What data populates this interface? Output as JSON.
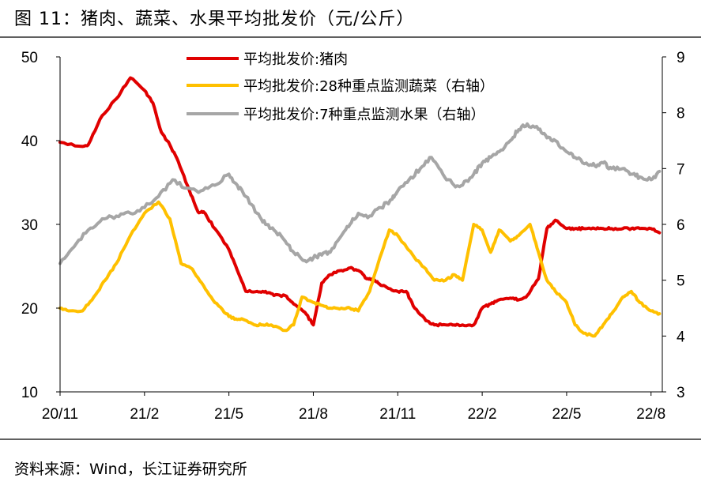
{
  "figure": {
    "title": "图  11：猪肉、蔬菜、水果平均批发价（元/公斤）",
    "source": "资料来源：Wind，长江证券研究所"
  },
  "colors": {
    "pork": "#e00000",
    "vegetables": "#ffc000",
    "fruits": "#a6a6a6",
    "axis": "#000000"
  },
  "chart_data": {
    "type": "line",
    "title": "猪肉、蔬菜、水果平均批发价（元/公斤）",
    "x_ticks": [
      "20/11",
      "21/2",
      "21/5",
      "21/8",
      "21/11",
      "22/2",
      "22/5",
      "22/8"
    ],
    "x_range": [
      0,
      21.4
    ],
    "y_left": {
      "ticks": [
        "50",
        "40",
        "30",
        "20",
        "10"
      ],
      "range": [
        10,
        50
      ]
    },
    "y_right": {
      "ticks": [
        "9",
        "8",
        "7",
        "6",
        "5",
        "4",
        "3"
      ],
      "range": [
        3,
        9
      ]
    },
    "legend_position": "top",
    "series": [
      {
        "name": "平均批发价:猪肉",
        "axis": "left",
        "color": "#e00000",
        "x": [
          0,
          0.8,
          1.0,
          1.5,
          2.0,
          2.5,
          3.0,
          3.3,
          3.6,
          3.9,
          4.2,
          4.6,
          4.9,
          5.1,
          5.5,
          6.0,
          6.3,
          6.6,
          7.0,
          7.3,
          7.6,
          8.0,
          8.3,
          8.7,
          9.0,
          9.3,
          9.6,
          10.0,
          10.3,
          10.6,
          10.9,
          11.1,
          11.3,
          11.6,
          12.0,
          12.3,
          12.6,
          13.0,
          13.3,
          13.7,
          14.0,
          14.3,
          14.7,
          15.0,
          15.3,
          15.6,
          16.0,
          16.3,
          16.6,
          17.0,
          17.3,
          17.6,
          18.0,
          18.3,
          18.6,
          19.0,
          19.3,
          19.6,
          20.0,
          20.3,
          20.6,
          21.0,
          21.3
        ],
        "y": [
          39.8,
          39.3,
          39.5,
          43,
          45,
          47.5,
          46,
          44.5,
          41,
          39.5,
          37.5,
          34,
          31.5,
          31.5,
          29.5,
          27,
          24.5,
          22,
          22,
          22,
          21.5,
          21.5,
          20.5,
          19.5,
          18,
          23,
          24,
          24.5,
          24.8,
          24.5,
          23.5,
          23.5,
          23,
          22.5,
          22,
          22,
          20,
          18.5,
          18,
          18,
          18,
          18,
          18,
          20,
          20.5,
          21,
          21.2,
          21,
          21.5,
          23.5,
          29.5,
          30.5,
          29.5,
          29.5,
          29.5,
          29.5,
          29.5,
          29.5,
          29.5,
          29.5,
          29.5,
          29.5,
          29
        ]
      },
      {
        "name": "平均批发价:28种重点监测蔬菜（右轴）",
        "axis": "right",
        "color": "#ffc000",
        "x": [
          0,
          0.3,
          0.8,
          1.2,
          1.6,
          2.0,
          2.5,
          3.0,
          3.5,
          3.9,
          4.3,
          4.7,
          5.1,
          5.5,
          5.9,
          6.2,
          6.5,
          6.9,
          7.2,
          7.5,
          8.0,
          8.3,
          8.6,
          9.0,
          9.3,
          9.6,
          10.0,
          10.3,
          10.6,
          11.0,
          11.3,
          11.7,
          12.0,
          12.3,
          12.6,
          13.0,
          13.3,
          13.7,
          14.0,
          14.3,
          14.7,
          15.0,
          15.3,
          15.6,
          16.0,
          16.3,
          16.7,
          17.0,
          17.3,
          17.6,
          18.0,
          18.3,
          18.6,
          19.0,
          19.3,
          19.6,
          20.0,
          20.3,
          20.6,
          21.0,
          21.3
        ],
        "y": [
          4.5,
          4.45,
          4.45,
          4.7,
          5.0,
          5.3,
          5.8,
          6.2,
          6.4,
          6.1,
          5.3,
          5.2,
          4.9,
          4.6,
          4.4,
          4.3,
          4.3,
          4.2,
          4.2,
          4.2,
          4.1,
          4.2,
          4.7,
          4.6,
          4.55,
          4.5,
          4.5,
          4.5,
          4.45,
          4.8,
          5.3,
          5.9,
          5.8,
          5.6,
          5.4,
          5.2,
          5.0,
          5.0,
          5.1,
          5.0,
          6.0,
          5.9,
          5.5,
          5.9,
          5.7,
          5.8,
          6.0,
          5.5,
          5.0,
          4.8,
          4.6,
          4.2,
          4.05,
          4.0,
          4.2,
          4.4,
          4.7,
          4.8,
          4.6,
          4.45,
          4.4
        ]
      },
      {
        "name": "平均批发价:7种重点监测水果（右轴）",
        "axis": "right",
        "color": "#a6a6a6",
        "x": [
          0,
          0.5,
          1.0,
          1.5,
          2.0,
          2.5,
          3.0,
          3.5,
          4.0,
          4.5,
          5.0,
          5.5,
          6.0,
          6.3,
          6.6,
          7.0,
          7.3,
          7.6,
          8.0,
          8.3,
          8.7,
          9.0,
          9.3,
          9.6,
          10.0,
          10.3,
          10.6,
          11.0,
          11.4,
          11.8,
          12.0,
          12.4,
          12.8,
          13.2,
          13.6,
          14.0,
          14.3,
          14.7,
          15.0,
          15.3,
          15.6,
          16.0,
          16.3,
          16.6,
          17.0,
          17.3,
          17.6,
          18.0,
          18.3,
          18.7,
          19.0,
          19.3,
          19.6,
          20.0,
          20.3,
          20.6,
          21.0,
          21.3
        ],
        "y": [
          5.3,
          5.6,
          5.9,
          6.1,
          6.15,
          6.2,
          6.3,
          6.5,
          6.8,
          6.65,
          6.6,
          6.7,
          6.9,
          6.7,
          6.5,
          6.2,
          6.0,
          5.9,
          5.7,
          5.5,
          5.35,
          5.4,
          5.45,
          5.5,
          5.8,
          6.0,
          6.2,
          6.15,
          6.3,
          6.45,
          6.6,
          6.8,
          7.0,
          7.2,
          6.9,
          6.7,
          6.7,
          6.9,
          7.1,
          7.2,
          7.3,
          7.5,
          7.7,
          7.8,
          7.7,
          7.55,
          7.5,
          7.3,
          7.2,
          7.1,
          7.05,
          7.1,
          7.0,
          7.0,
          6.9,
          6.85,
          6.8,
          6.95
        ]
      }
    ]
  }
}
